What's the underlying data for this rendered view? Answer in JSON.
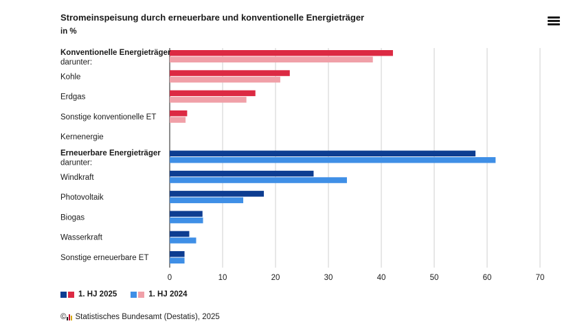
{
  "header": {
    "title": "Stromeinspeisung durch erneuerbare und konventionelle Energieträger",
    "subtitle": "in %",
    "menu_icon": "hamburger-menu-icon"
  },
  "chart_data": {
    "type": "bar",
    "orientation": "horizontal",
    "title": "Stromeinspeisung durch erneuerbare und konventionelle Energieträger",
    "subtitle": "in %",
    "xlim": [
      0,
      70
    ],
    "x_ticks": [
      0,
      10,
      20,
      30,
      40,
      50,
      60,
      70
    ],
    "grid": true,
    "legend_position": "bottom-left",
    "categories": [
      {
        "label": "Konventionelle Energieträger",
        "sublabel": "darunter:",
        "bold": true,
        "group": "konventionell"
      },
      {
        "label": "Kohle",
        "group": "konventionell"
      },
      {
        "label": "Erdgas",
        "group": "konventionell"
      },
      {
        "label": "Sonstige konventionelle ET",
        "group": "konventionell"
      },
      {
        "label": "Kernenergie",
        "group": "konventionell"
      },
      {
        "label": "Erneuerbare Energieträger",
        "sublabel": "darunter:",
        "bold": true,
        "group": "erneuerbar"
      },
      {
        "label": "Windkraft",
        "group": "erneuerbar"
      },
      {
        "label": "Photovoltaik",
        "group": "erneuerbar"
      },
      {
        "label": "Biogas",
        "group": "erneuerbar"
      },
      {
        "label": "Wasserkraft",
        "group": "erneuerbar"
      },
      {
        "label": "Sonstige erneuerbare ET",
        "group": "erneuerbar"
      }
    ],
    "series": [
      {
        "name": "1. HJ 2025",
        "values": [
          42.2,
          22.7,
          16.2,
          3.3,
          0,
          57.8,
          27.2,
          17.8,
          6.2,
          3.7,
          2.8
        ]
      },
      {
        "name": "1. HJ 2024",
        "values": [
          38.4,
          20.9,
          14.5,
          3.0,
          0,
          61.6,
          33.5,
          13.9,
          6.3,
          5.0,
          2.8
        ]
      }
    ],
    "colors": {
      "konventionell": {
        "1. HJ 2025": "#dc2a43",
        "1. HJ 2024": "#f0a0a8"
      },
      "erneuerbar": {
        "1. HJ 2025": "#0d3d91",
        "1. HJ 2024": "#3f8fe6"
      }
    }
  },
  "legend": {
    "items": [
      {
        "label": "1. HJ 2025",
        "colors": [
          "#0d3d91",
          "#dc2a43"
        ]
      },
      {
        "label": "1. HJ 2024",
        "colors": [
          "#3f8fe6",
          "#f0a0a8"
        ]
      }
    ]
  },
  "footer": {
    "copyright_symbol": "©",
    "source": "Statistisches Bundesamt (Destatis), 2025"
  }
}
